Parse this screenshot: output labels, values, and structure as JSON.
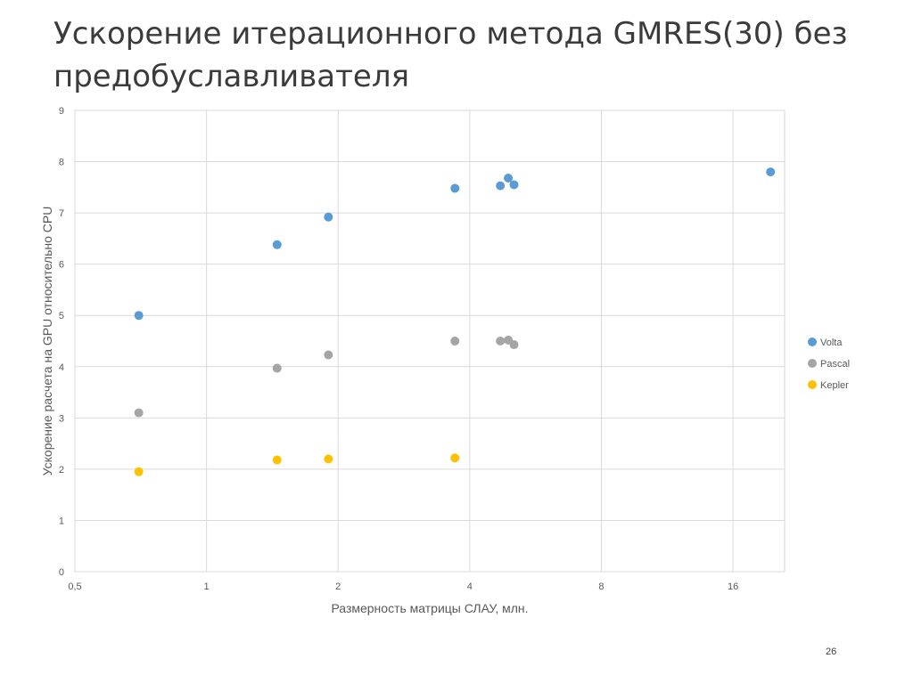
{
  "slide": {
    "title": "Ускорение итерационного метода GMRES(30) без предобуславливателя",
    "page_number": "26"
  },
  "chart_data": {
    "type": "scatter",
    "title": "",
    "xlabel": "Размерность матрицы СЛАУ, млн.",
    "ylabel": "Ускорение расчета на GPU относительно CPU",
    "x_scale": "log2",
    "xlim": [
      0.5,
      21
    ],
    "ylim": [
      0,
      9
    ],
    "x_ticks": [
      0.5,
      1,
      2,
      4,
      8,
      16
    ],
    "x_tick_labels": [
      "0,5",
      "1",
      "2",
      "4",
      "8",
      "16"
    ],
    "y_ticks": [
      0,
      1,
      2,
      3,
      4,
      5,
      6,
      7,
      8,
      9
    ],
    "y_tick_labels": [
      "0",
      "1",
      "2",
      "3",
      "4",
      "5",
      "6",
      "7",
      "8",
      "9"
    ],
    "grid": true,
    "legend_position": "right",
    "series": [
      {
        "name": "Volta",
        "color": "#5b9bd5",
        "points": [
          [
            0.7,
            5.0
          ],
          [
            1.45,
            6.38
          ],
          [
            1.9,
            6.92
          ],
          [
            3.7,
            7.48
          ],
          [
            4.7,
            7.53
          ],
          [
            4.9,
            7.68
          ],
          [
            5.05,
            7.55
          ],
          [
            19.5,
            7.8
          ]
        ]
      },
      {
        "name": "Pascal",
        "color": "#a5a5a5",
        "points": [
          [
            0.7,
            3.1
          ],
          [
            1.45,
            3.97
          ],
          [
            1.9,
            4.23
          ],
          [
            3.7,
            4.5
          ],
          [
            4.7,
            4.5
          ],
          [
            4.9,
            4.52
          ],
          [
            5.05,
            4.43
          ]
        ]
      },
      {
        "name": "Kepler",
        "color": "#ffc000",
        "points": [
          [
            0.7,
            1.95
          ],
          [
            1.45,
            2.18
          ],
          [
            1.9,
            2.2
          ],
          [
            3.7,
            2.22
          ]
        ]
      }
    ]
  }
}
